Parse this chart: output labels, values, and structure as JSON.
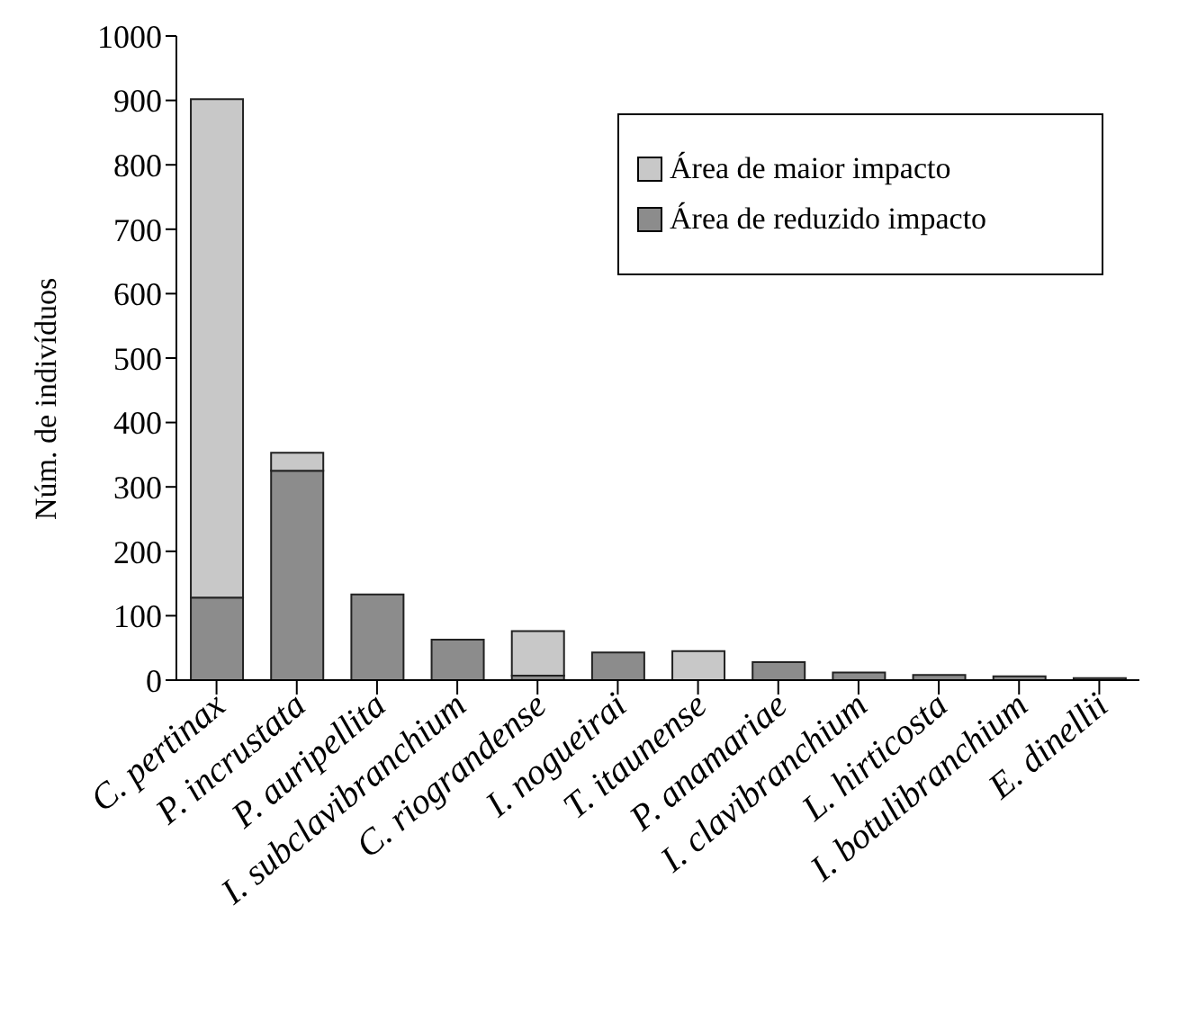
{
  "chart_data": {
    "type": "bar",
    "stacked": true,
    "ylabel": "Núm. de indivíduos",
    "categories": [
      "C. pertinax",
      "P. incrustata",
      "P. auripellita",
      "I. subclavibranchium",
      "C. riograndense",
      "I. nogueirai",
      "T. itaunense",
      "P. anamariae",
      "I. clavibranchium",
      "L. hirticosta",
      "I. botulibranchium",
      "E. dinellii"
    ],
    "series": [
      {
        "name": "Área de reduzido impacto",
        "color": "#8c8c8c",
        "values": [
          128,
          325,
          133,
          63,
          7,
          43,
          null,
          28,
          12,
          8,
          6,
          3
        ]
      },
      {
        "name": "Área de maior impacto",
        "color": "#c8c8c8",
        "values": [
          774,
          28,
          0,
          0,
          69,
          0,
          45,
          0,
          0,
          0,
          0,
          0
        ]
      }
    ],
    "ylim": [
      0,
      1000
    ],
    "yticks": [
      0,
      100,
      200,
      300,
      400,
      500,
      600,
      700,
      800,
      900,
      1000
    ],
    "grid": false,
    "legend": "top right"
  }
}
